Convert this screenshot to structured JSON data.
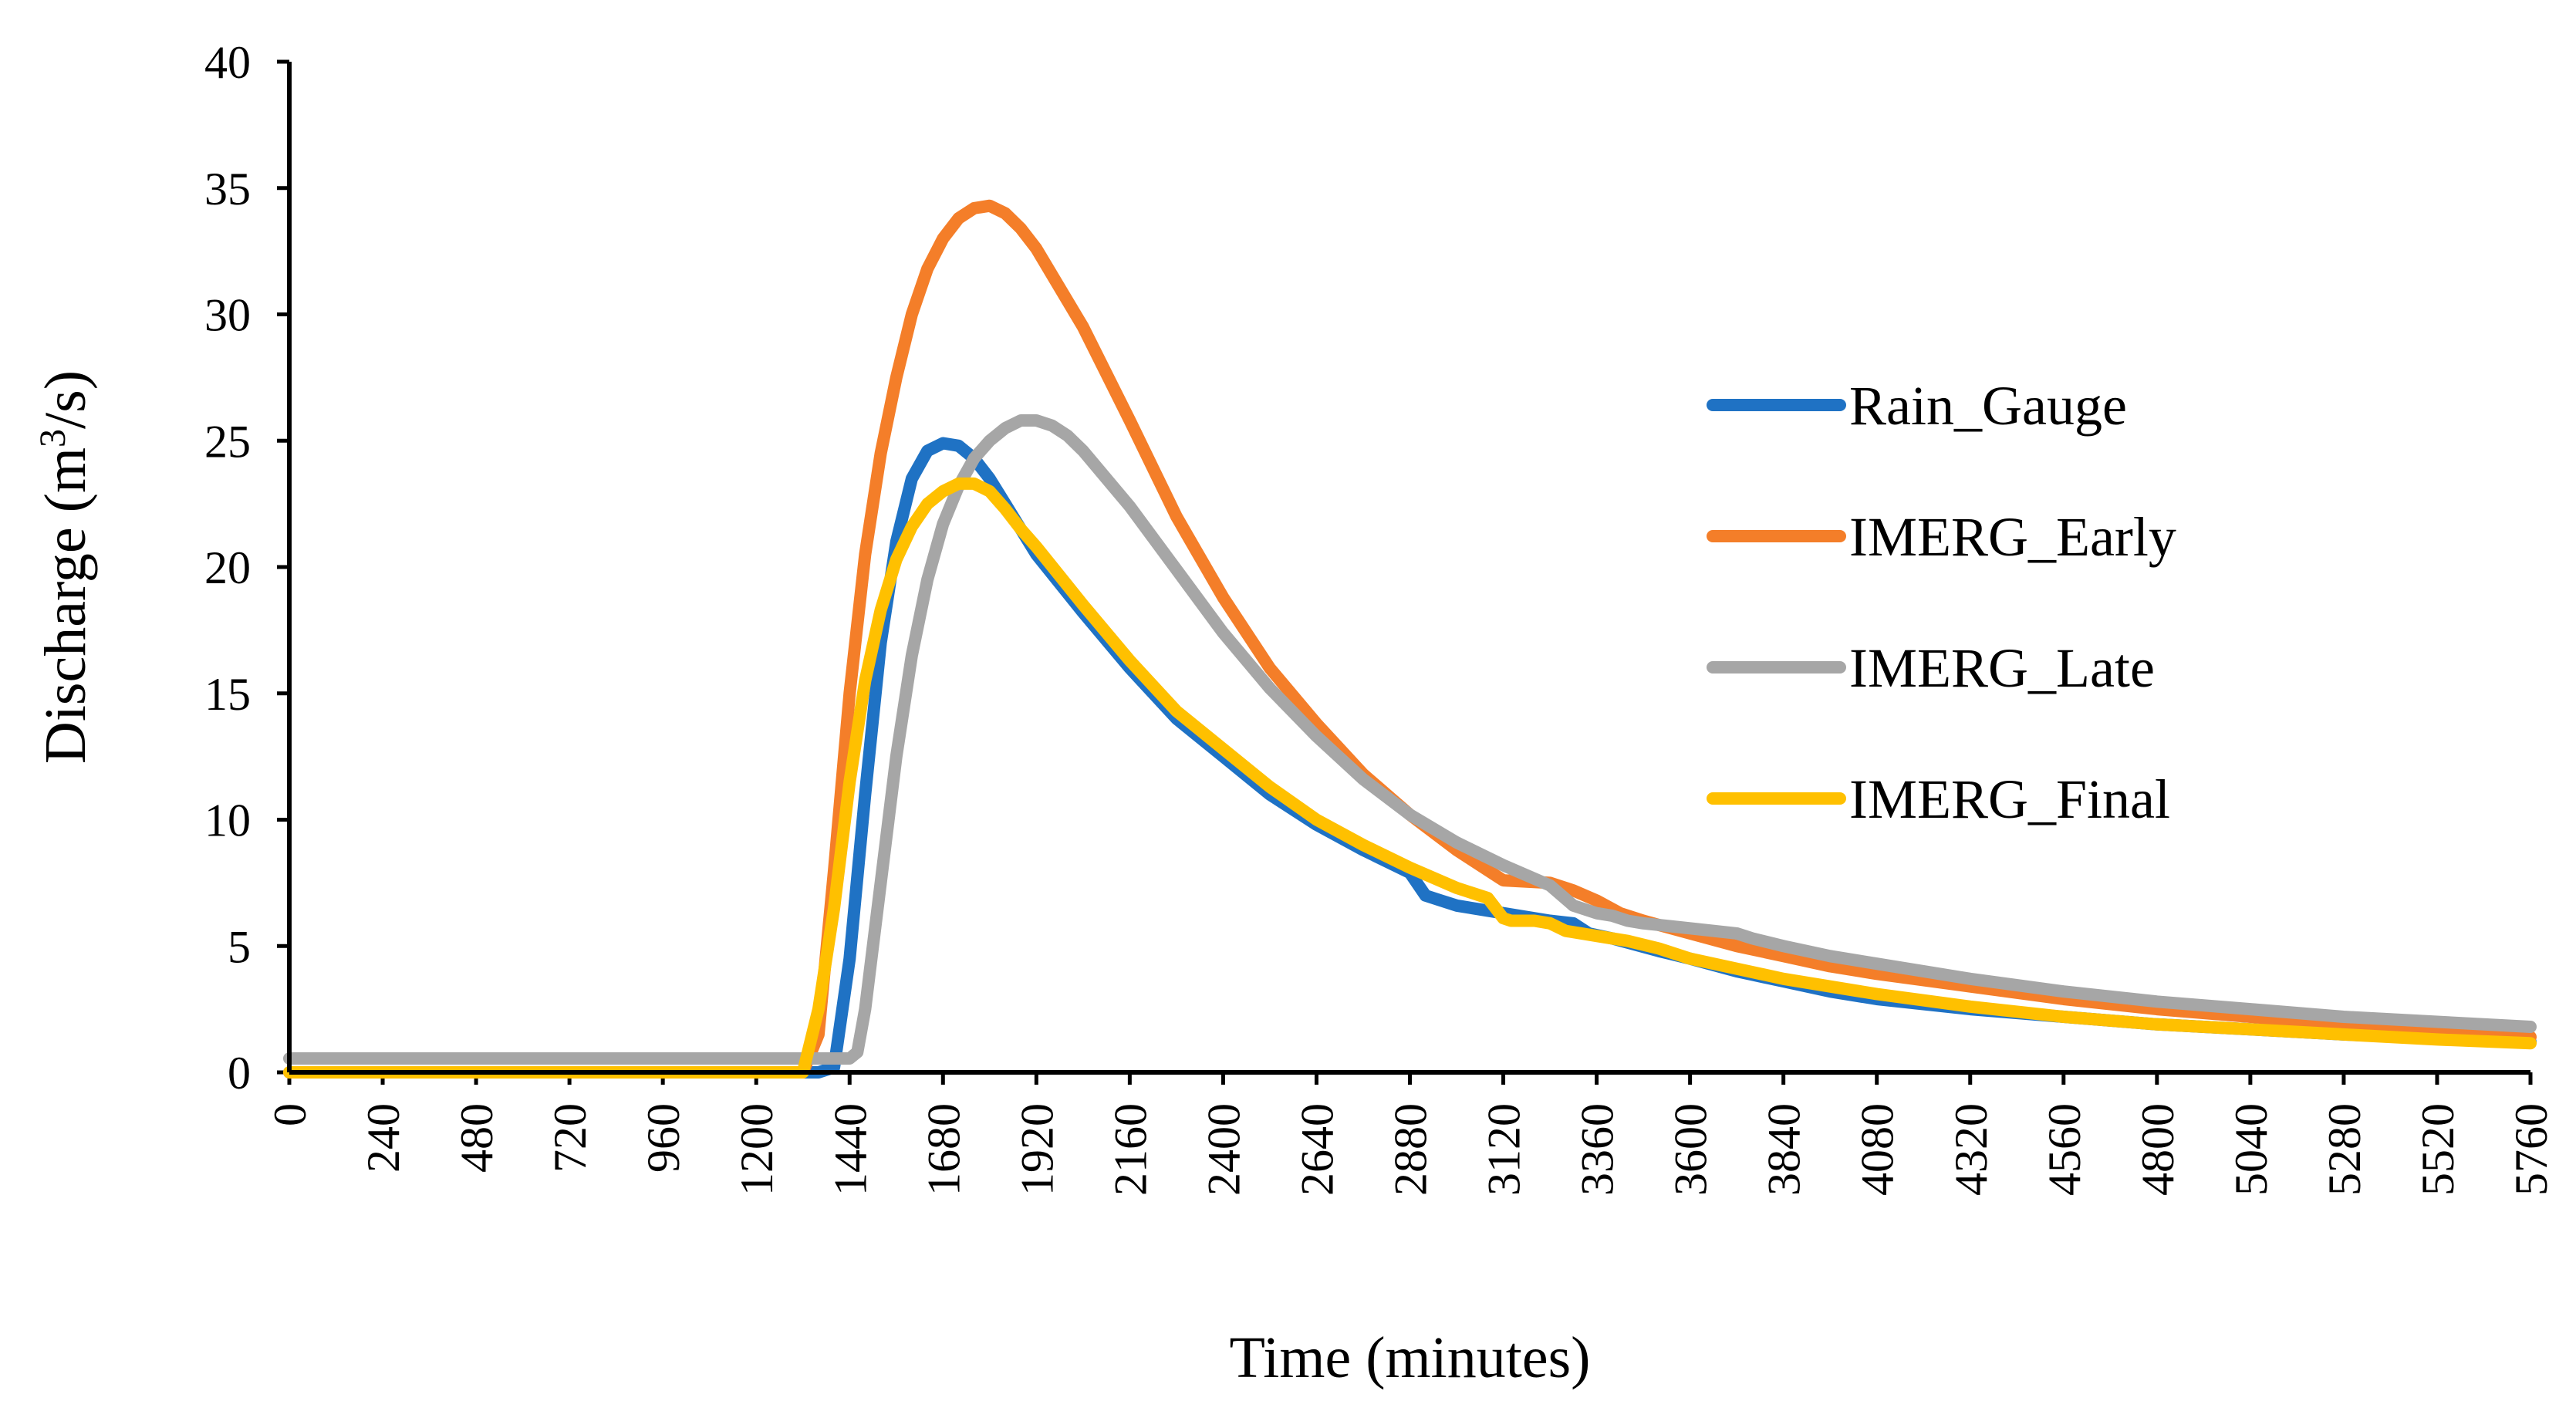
{
  "chart_data": {
    "type": "line",
    "title": "",
    "xlabel": "Time (minutes)",
    "ylabel": {
      "pre": "Discharge (m",
      "sup": "3",
      "post": "/s)"
    },
    "xlim": [
      0,
      5760
    ],
    "ylim": [
      0,
      40
    ],
    "xticks": [
      0,
      240,
      480,
      720,
      960,
      1200,
      1440,
      1680,
      1920,
      2160,
      2400,
      2640,
      2880,
      3120,
      3360,
      3600,
      3840,
      4080,
      4320,
      4560,
      4800,
      5040,
      5280,
      5520,
      5760
    ],
    "yticks": [
      0,
      5,
      10,
      15,
      20,
      25,
      30,
      35,
      40
    ],
    "grid": false,
    "legend_position": "right",
    "series": [
      {
        "name": "Rain_Gauge",
        "color": "#1F72C4",
        "x": [
          0,
          1320,
          1360,
          1400,
          1440,
          1480,
          1520,
          1560,
          1600,
          1640,
          1680,
          1720,
          1760,
          1800,
          1840,
          1880,
          1920,
          2040,
          2160,
          2280,
          2400,
          2520,
          2640,
          2760,
          2880,
          2920,
          2960,
          3000,
          3120,
          3240,
          3300,
          3340,
          3400,
          3520,
          3600,
          3720,
          3840,
          3960,
          4080,
          4320,
          4560,
          4800,
          5040,
          5280,
          5520,
          5760
        ],
        "values": [
          0,
          0,
          0,
          0.2,
          4.5,
          11.0,
          17.0,
          21.0,
          23.5,
          24.6,
          24.9,
          24.8,
          24.3,
          23.5,
          22.5,
          21.5,
          20.5,
          18.2,
          16.0,
          14.0,
          12.5,
          11.0,
          9.8,
          8.8,
          7.9,
          7.0,
          6.8,
          6.6,
          6.3,
          6.0,
          5.9,
          5.5,
          5.3,
          4.8,
          4.5,
          4.0,
          3.6,
          3.2,
          2.9,
          2.5,
          2.2,
          1.9,
          1.7,
          1.5,
          1.35,
          1.2
        ]
      },
      {
        "name": "IMERG_Early",
        "color": "#F47E29",
        "x": [
          0,
          1320,
          1360,
          1400,
          1440,
          1480,
          1520,
          1560,
          1600,
          1640,
          1680,
          1720,
          1760,
          1800,
          1840,
          1880,
          1920,
          2040,
          2160,
          2280,
          2400,
          2520,
          2640,
          2760,
          2880,
          3000,
          3120,
          3240,
          3300,
          3360,
          3420,
          3480,
          3600,
          3720,
          3840,
          3960,
          4080,
          4320,
          4560,
          4800,
          5040,
          5280,
          5520,
          5760
        ],
        "values": [
          0,
          0,
          1.5,
          8.0,
          15.0,
          20.5,
          24.5,
          27.5,
          30.0,
          31.8,
          33.0,
          33.8,
          34.2,
          34.3,
          34.0,
          33.4,
          32.6,
          29.5,
          25.8,
          22.0,
          18.8,
          16.0,
          13.8,
          11.8,
          10.2,
          8.8,
          7.6,
          7.5,
          7.2,
          6.8,
          6.3,
          6.0,
          5.5,
          5.0,
          4.6,
          4.2,
          3.9,
          3.4,
          2.9,
          2.5,
          2.2,
          1.9,
          1.6,
          1.4
        ]
      },
      {
        "name": "IMERG_Late",
        "color": "#A6A6A6",
        "x": [
          0,
          1440,
          1460,
          1480,
          1520,
          1560,
          1600,
          1640,
          1680,
          1720,
          1760,
          1800,
          1840,
          1880,
          1920,
          1960,
          2000,
          2040,
          2160,
          2280,
          2400,
          2520,
          2640,
          2760,
          2880,
          3000,
          3120,
          3240,
          3300,
          3360,
          3400,
          3440,
          3480,
          3600,
          3720,
          3760,
          3840,
          3960,
          4080,
          4320,
          4560,
          4800,
          5040,
          5280,
          5520,
          5760
        ],
        "values": [
          0.55,
          0.55,
          0.8,
          2.5,
          7.5,
          12.5,
          16.5,
          19.5,
          21.7,
          23.2,
          24.3,
          25.0,
          25.5,
          25.8,
          25.8,
          25.6,
          25.2,
          24.6,
          22.4,
          19.9,
          17.4,
          15.2,
          13.3,
          11.6,
          10.2,
          9.1,
          8.2,
          7.4,
          6.6,
          6.3,
          6.2,
          6.0,
          5.9,
          5.7,
          5.5,
          5.3,
          5.0,
          4.6,
          4.3,
          3.7,
          3.2,
          2.8,
          2.5,
          2.2,
          2.0,
          1.8
        ]
      },
      {
        "name": "IMERG_Final",
        "color": "#FFC000",
        "x": [
          0,
          1320,
          1360,
          1400,
          1440,
          1480,
          1520,
          1560,
          1600,
          1640,
          1680,
          1720,
          1760,
          1800,
          1840,
          1880,
          1920,
          2040,
          2160,
          2280,
          2400,
          2520,
          2640,
          2760,
          2880,
          3000,
          3080,
          3120,
          3140,
          3200,
          3240,
          3280,
          3360,
          3440,
          3520,
          3600,
          3720,
          3840,
          3960,
          4080,
          4320,
          4560,
          4800,
          5040,
          5280,
          5520,
          5760
        ],
        "values": [
          0,
          0,
          2.5,
          6.5,
          11.5,
          15.5,
          18.3,
          20.3,
          21.6,
          22.5,
          23.0,
          23.3,
          23.3,
          23.0,
          22.3,
          21.5,
          20.8,
          18.5,
          16.3,
          14.3,
          12.8,
          11.3,
          10.0,
          9.0,
          8.1,
          7.3,
          6.9,
          6.1,
          6.0,
          6.0,
          5.9,
          5.6,
          5.4,
          5.2,
          4.9,
          4.5,
          4.1,
          3.7,
          3.4,
          3.1,
          2.6,
          2.2,
          1.9,
          1.7,
          1.5,
          1.3,
          1.15
        ]
      }
    ]
  }
}
